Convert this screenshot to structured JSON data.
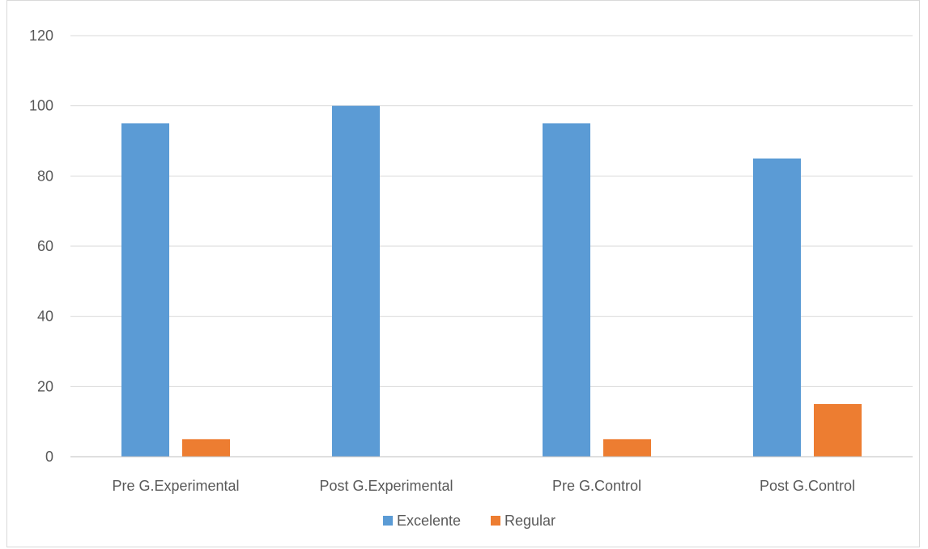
{
  "chart_data": {
    "type": "bar",
    "categories": [
      "Pre G.Experimental",
      "Post G.Experimental",
      "Pre G.Control",
      "Post G.Control"
    ],
    "series": [
      {
        "name": "Excelente",
        "values": [
          95,
          100,
          95,
          85
        ],
        "color": "#5b9bd5"
      },
      {
        "name": "Regular",
        "values": [
          5,
          0,
          5,
          15
        ],
        "color": "#ed7d31"
      }
    ],
    "ylim": [
      0,
      120
    ],
    "yticks": [
      0,
      20,
      40,
      60,
      80,
      100,
      120
    ],
    "grid": true,
    "legend_position": "bottom",
    "gridline_color": "#d9d9d9",
    "axis_color": "#bfbfbf"
  }
}
